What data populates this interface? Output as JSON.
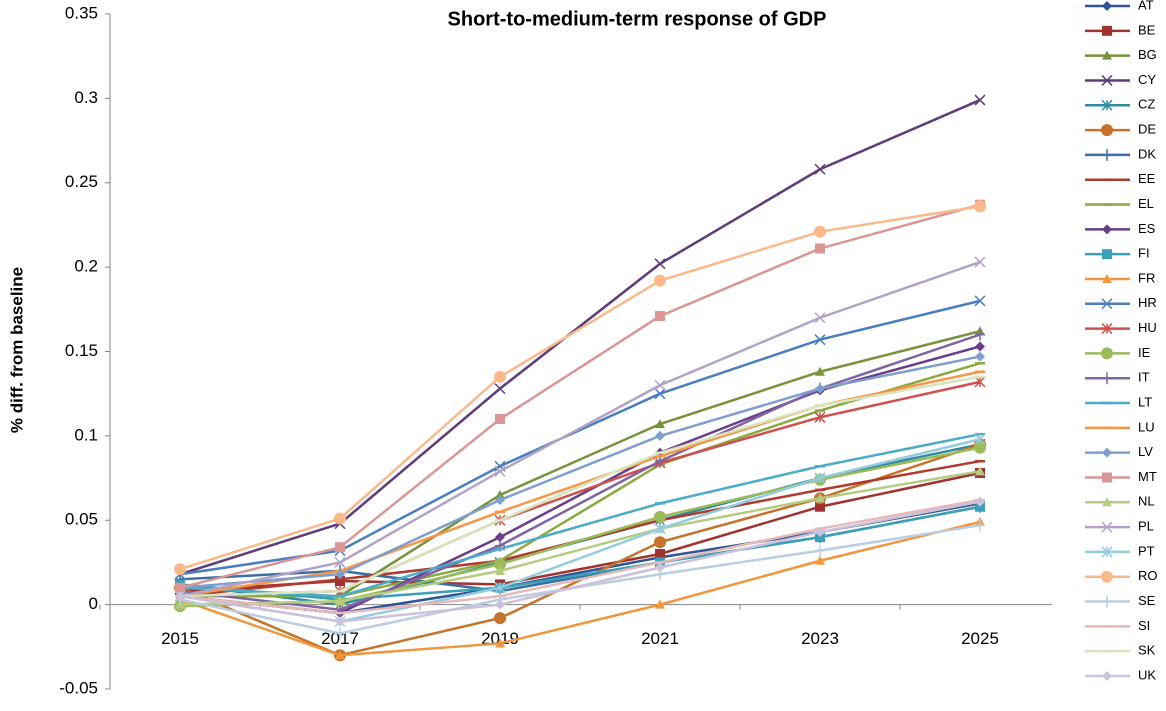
{
  "chart_data": {
    "type": "line",
    "title": "Short-to-medium-term response of GDP",
    "y_label": "% diff. from baseline",
    "categories": [
      "2015",
      "2017",
      "2019",
      "2021",
      "2023",
      "2025"
    ],
    "ylim": [
      -0.05,
      0.35
    ],
    "yticks": [
      -0.05,
      0,
      0.05,
      0.1,
      0.15,
      0.2,
      0.25,
      0.3,
      0.35
    ],
    "grid": false,
    "legend": "right",
    "series": [
      {
        "name": "AT",
        "color": "#2f5597",
        "marker": "diamond",
        "values": [
          0.005,
          -0.005,
          0.01,
          0.028,
          0.043,
          0.06
        ]
      },
      {
        "name": "BE",
        "color": "#a0332f",
        "marker": "square",
        "values": [
          0.008,
          0.014,
          0.012,
          0.03,
          0.058,
          0.078
        ]
      },
      {
        "name": "BG",
        "color": "#77933c",
        "marker": "triangle",
        "values": [
          0.005,
          0.005,
          0.065,
          0.107,
          0.138,
          0.162
        ]
      },
      {
        "name": "CY",
        "color": "#5f3c7a",
        "marker": "x",
        "values": [
          0.018,
          0.048,
          0.128,
          0.202,
          0.258,
          0.299
        ]
      },
      {
        "name": "CZ",
        "color": "#2e8ba0",
        "marker": "star",
        "values": [
          0.012,
          0.0,
          0.025,
          0.05,
          0.075,
          0.095
        ]
      },
      {
        "name": "DE",
        "color": "#c5732a",
        "marker": "circle",
        "values": [
          0.01,
          -0.03,
          -0.008,
          0.037,
          0.063,
          0.095
        ]
      },
      {
        "name": "DK",
        "color": "#3a6ea5",
        "marker": "plus",
        "values": [
          0.015,
          0.02,
          0.008,
          0.025,
          0.04,
          0.058
        ]
      },
      {
        "name": "EE",
        "color": "#b03a2e",
        "marker": "dash",
        "values": [
          0.005,
          0.015,
          0.026,
          0.05,
          0.068,
          0.085
        ]
      },
      {
        "name": "EL",
        "color": "#8aa93e",
        "marker": "dash",
        "values": [
          0.005,
          0.005,
          0.026,
          0.083,
          0.115,
          0.143
        ]
      },
      {
        "name": "ES",
        "color": "#6a3d8a",
        "marker": "diamond",
        "values": [
          0.005,
          -0.005,
          0.04,
          0.09,
          0.127,
          0.153
        ]
      },
      {
        "name": "FI",
        "color": "#3aa0b8",
        "marker": "square",
        "values": [
          0.012,
          0.003,
          0.01,
          0.025,
          0.04,
          0.058
        ]
      },
      {
        "name": "FR",
        "color": "#f0963c",
        "marker": "triangle",
        "values": [
          0.003,
          -0.03,
          -0.023,
          0.0,
          0.026,
          0.049
        ]
      },
      {
        "name": "HR",
        "color": "#4a7ec2",
        "marker": "x",
        "values": [
          0.018,
          0.032,
          0.082,
          0.125,
          0.157,
          0.18
        ]
      },
      {
        "name": "HU",
        "color": "#d0504d",
        "marker": "star",
        "values": [
          0.005,
          0.008,
          0.05,
          0.084,
          0.111,
          0.132
        ]
      },
      {
        "name": "IE",
        "color": "#9bbb59",
        "marker": "circle",
        "values": [
          -0.001,
          0.002,
          0.024,
          0.052,
          0.074,
          0.093
        ]
      },
      {
        "name": "IT",
        "color": "#8064a2",
        "marker": "plus",
        "values": [
          0.008,
          -0.003,
          0.035,
          0.085,
          0.128,
          0.16
        ]
      },
      {
        "name": "LT",
        "color": "#4bacc6",
        "marker": "dash",
        "values": [
          0.01,
          0.005,
          0.033,
          0.06,
          0.082,
          0.101
        ]
      },
      {
        "name": "LU",
        "color": "#f79646",
        "marker": "dash",
        "values": [
          0.005,
          0.02,
          0.055,
          0.088,
          0.118,
          0.138
        ]
      },
      {
        "name": "LV",
        "color": "#7f9fcf",
        "marker": "diamond",
        "values": [
          0.01,
          0.018,
          0.062,
          0.1,
          0.128,
          0.147
        ]
      },
      {
        "name": "MT",
        "color": "#d99694",
        "marker": "square",
        "values": [
          0.01,
          0.034,
          0.11,
          0.171,
          0.211,
          0.237
        ]
      },
      {
        "name": "NL",
        "color": "#b3cc82",
        "marker": "triangle",
        "values": [
          0.0,
          0.002,
          0.02,
          0.045,
          0.063,
          0.079
        ]
      },
      {
        "name": "PL",
        "color": "#b3a2c7",
        "marker": "x",
        "values": [
          0.005,
          0.025,
          0.079,
          0.13,
          0.17,
          0.203
        ]
      },
      {
        "name": "PT",
        "color": "#93cddd",
        "marker": "star",
        "values": [
          0.005,
          -0.01,
          0.01,
          0.045,
          0.075,
          0.098
        ]
      },
      {
        "name": "RO",
        "color": "#fab98a",
        "marker": "circle",
        "values": [
          0.021,
          0.051,
          0.135,
          0.192,
          0.221,
          0.236
        ]
      },
      {
        "name": "SE",
        "color": "#b9cde5",
        "marker": "plus",
        "values": [
          0.003,
          -0.017,
          0.003,
          0.018,
          0.032,
          0.047
        ]
      },
      {
        "name": "SI",
        "color": "#e6b9b8",
        "marker": "dash",
        "values": [
          0.005,
          -0.005,
          0.005,
          0.025,
          0.045,
          0.062
        ]
      },
      {
        "name": "SK",
        "color": "#d7e4bd",
        "marker": "dash",
        "values": [
          0.005,
          0.008,
          0.05,
          0.09,
          0.118,
          0.135
        ]
      },
      {
        "name": "UK",
        "color": "#ccc1da",
        "marker": "diamond",
        "values": [
          0.005,
          -0.01,
          0.0,
          0.022,
          0.043,
          0.061
        ]
      }
    ]
  }
}
